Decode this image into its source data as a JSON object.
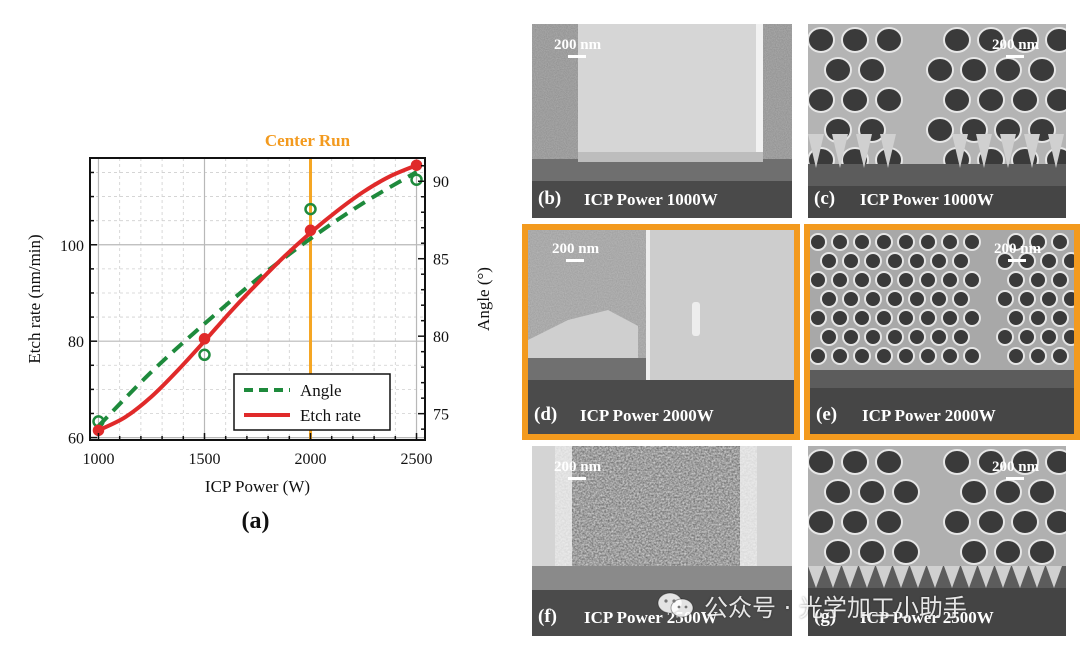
{
  "chart_data": {
    "type": "line",
    "title": "Center Run",
    "panel_label": "(a)",
    "xlabel": "ICP Power (W)",
    "ylabel_left": "Etch rate (nm/min)",
    "ylabel_right": "Angle (°)",
    "xlim": [
      960,
      2540
    ],
    "ylim_left": [
      59.5,
      118
    ],
    "ylim_right": [
      73.3,
      91.5
    ],
    "x_ticks": [
      1000,
      1500,
      2000,
      2500
    ],
    "y_ticks_left": [
      60,
      80,
      100
    ],
    "y_ticks_right": [
      75,
      80,
      85,
      90
    ],
    "grid": true,
    "center_run_x": 2000,
    "legend_position": "lower-right",
    "series": [
      {
        "name": "Angle",
        "axis": "right",
        "style": "dashed",
        "color": "#1e8a3c",
        "marker": "open-circle",
        "points_x": [
          1000,
          1500,
          2000,
          2500
        ],
        "points_y": [
          74.5,
          78.8,
          88.2,
          90.1
        ],
        "fit_x": [
          1000,
          1250,
          1500,
          1750,
          2000,
          2250,
          2500
        ],
        "fit_y": [
          74.2,
          77.7,
          80.8,
          83.7,
          86.3,
          88.6,
          90.6
        ]
      },
      {
        "name": "Etch rate",
        "axis": "left",
        "style": "solid",
        "color": "#e02a2a",
        "marker": "filled-circle",
        "points_x": [
          1000,
          1500,
          2000,
          2500
        ],
        "points_y": [
          61.5,
          80.5,
          103,
          116.5
        ],
        "fit_x": [
          1000,
          1125,
          1250,
          1375,
          1500,
          1625,
          1750,
          1875,
          2000,
          2125,
          2250,
          2375,
          2500
        ],
        "fit_y": [
          61.5,
          64.2,
          68.5,
          74.0,
          80.0,
          86.2,
          92.0,
          97.5,
          102.5,
          107.0,
          111.0,
          114.2,
          116.5
        ]
      }
    ]
  },
  "sem_panels": [
    {
      "letter": "(b)",
      "caption": "ICP Power 1000W",
      "scale": "200 nm",
      "highlighted": false
    },
    {
      "letter": "(c)",
      "caption": "ICP Power 1000W",
      "scale": "200 nm",
      "highlighted": false
    },
    {
      "letter": "(d)",
      "caption": "ICP Power 2000W",
      "scale": "200 nm",
      "highlighted": true
    },
    {
      "letter": "(e)",
      "caption": "ICP Power 2000W",
      "scale": "200 nm",
      "highlighted": true
    },
    {
      "letter": "(f)",
      "caption": "ICP Power 2500W",
      "scale": "200 nm",
      "highlighted": false
    },
    {
      "letter": "(g)",
      "caption": "ICP Power 2500W",
      "scale": "200 nm",
      "highlighted": false
    }
  ],
  "watermark": {
    "text": "公众号 · 光学加工小助手"
  },
  "colors": {
    "highlight": "#f39a1e",
    "angle": "#1e8a3c",
    "etch": "#e02a2a",
    "center_line": "#f5a623"
  }
}
